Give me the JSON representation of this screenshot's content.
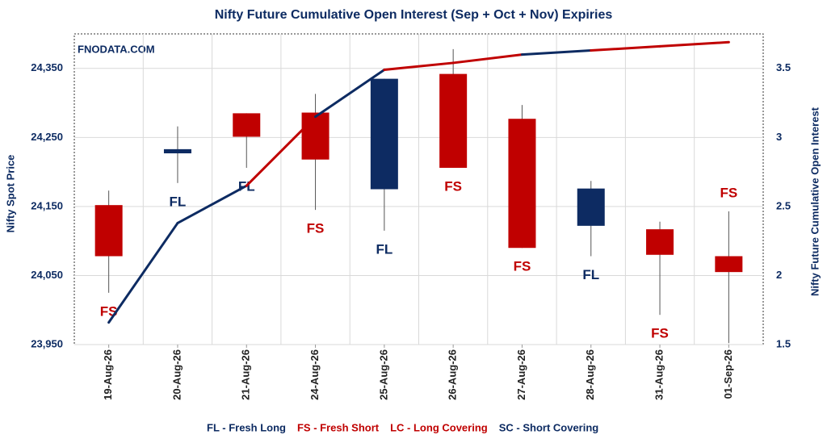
{
  "chart_data": {
    "type": "candlestick",
    "title": "Nifty Future Cumulative Open Interest (Sep + Oct + Nov) Expiries",
    "watermark": "FNODATA.COM",
    "y_label": "Nifty Spot Price",
    "y2_label": "Nifty Future Cumulative Open Interest",
    "categories": [
      "19-Aug-26",
      "20-Aug-26",
      "21-Aug-26",
      "24-Aug-26",
      "25-Aug-26",
      "26-Aug-26",
      "27-Aug-26",
      "28-Aug-26",
      "31-Aug-26",
      "01-Sep-26"
    ],
    "price": {
      "open": [
        24152,
        24227,
        24285,
        24286,
        24175,
        24342,
        24277,
        24122,
        24117,
        24078
      ],
      "high": [
        24173,
        24266,
        24285,
        24313,
        24335,
        24378,
        24297,
        24187,
        24128,
        24143
      ],
      "low": [
        24025,
        24184,
        24206,
        24145,
        24115,
        24206,
        24090,
        24078,
        23993,
        23952
      ],
      "close": [
        24078,
        24233,
        24251,
        24218,
        24335,
        24206,
        24090,
        24176,
        24080,
        24055
      ]
    },
    "oi": {
      "name": "Nifty Future Cumulative Open Interest",
      "axis": "y2",
      "values": [
        1.66,
        2.38,
        2.65,
        3.15,
        3.49,
        3.54,
        3.6,
        3.63,
        3.66,
        3.69
      ]
    },
    "signals": [
      "FS",
      "FL",
      "FL",
      "FS",
      "FL",
      "FS",
      "FS",
      "FL",
      "FS",
      "FS"
    ],
    "signal_colors": {
      "FL": "#0d2b62",
      "FS": "#c00000",
      "LC": "#c00000",
      "SC": "#0d2b62"
    },
    "legend": [
      {
        "label": "FL - Fresh Long",
        "color": "#0d2b62"
      },
      {
        "label": "FS - Fresh Short",
        "color": "#c00000"
      },
      {
        "label": "LC - Long Covering",
        "color": "#c00000"
      },
      {
        "label": "SC - Short Covering",
        "color": "#0d2b62"
      }
    ],
    "ylim": [
      23950,
      24400
    ],
    "yticks": [
      {
        "value": 23950,
        "label": "23,950"
      },
      {
        "value": 24050,
        "label": "24,050"
      },
      {
        "value": 24150,
        "label": "24,150"
      },
      {
        "value": 24250,
        "label": "24,250"
      },
      {
        "value": 24350,
        "label": "24,350"
      }
    ],
    "y2lim": [
      1.5,
      3.75
    ],
    "y2ticks": [
      1.5,
      2,
      2.5,
      3,
      3.5
    ],
    "grid": true
  }
}
